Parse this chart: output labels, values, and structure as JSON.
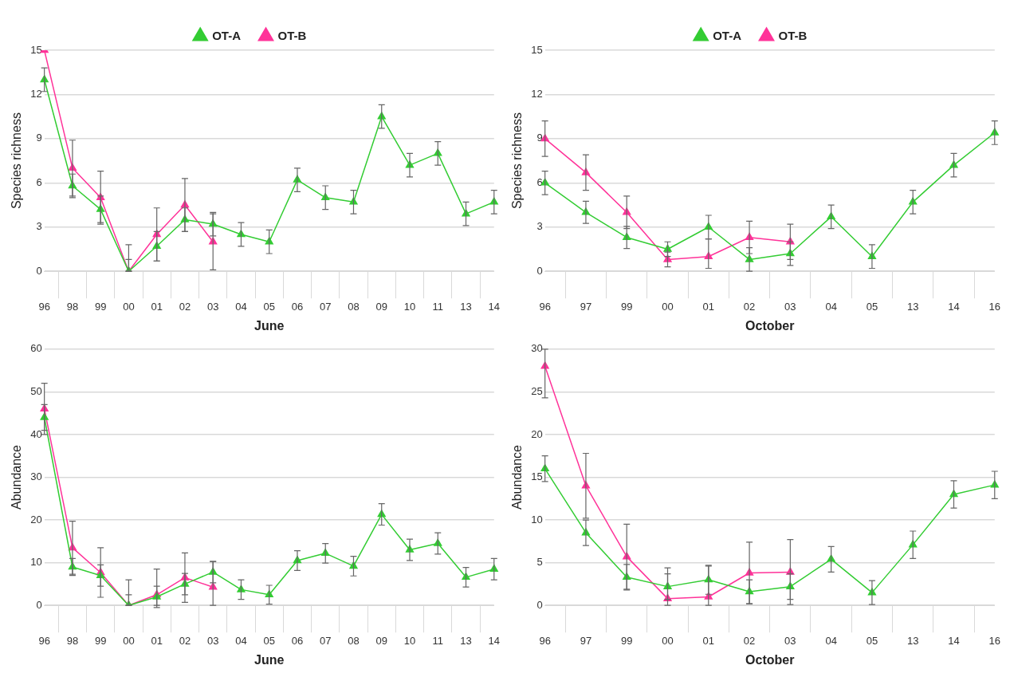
{
  "chart_data": [
    {
      "type": "line",
      "xlabel": "June",
      "ylabel": "Species richness",
      "categories": [
        "96",
        "98",
        "99",
        "00",
        "01",
        "02",
        "03",
        "04",
        "05",
        "06",
        "07",
        "08",
        "09",
        "10",
        "11",
        "13",
        "14"
      ],
      "ylim": [
        0,
        15
      ],
      "yticks": [
        0,
        3,
        6,
        9,
        12,
        15
      ],
      "grid": "y",
      "legend": "top",
      "marker": "triangle",
      "line_style": "solid",
      "series": [
        {
          "name": "OT-A",
          "color": "#33cc33",
          "values": [
            13,
            5.8,
            4.2,
            0,
            1.7,
            3.5,
            3.2,
            2.5,
            2,
            6.2,
            5,
            4.7,
            10.5,
            7.2,
            8,
            3.9,
            4.7
          ],
          "errors": [
            0.8,
            0.8,
            0.9,
            [
              0,
              0.8
            ],
            1,
            0.8,
            0.8,
            0.8,
            0.8,
            0.8,
            0.8,
            0.8,
            0.8,
            0.8,
            0.8,
            0.8,
            0.8
          ]
        },
        {
          "name": "OT-B",
          "color": "#ff3399",
          "values": [
            15,
            7,
            5,
            0,
            2.5,
            4.5,
            2,
            null,
            null,
            null,
            null,
            null,
            null,
            null,
            null,
            null,
            null
          ],
          "errors": [
            null,
            1.9,
            1.8,
            [
              0,
              1.8
            ],
            1.8,
            1.8,
            1.9,
            null,
            null,
            null,
            null,
            null,
            null,
            null,
            null,
            null,
            null
          ]
        }
      ]
    },
    {
      "type": "line",
      "xlabel": "October",
      "ylabel": "Species richness",
      "categories": [
        "96",
        "97",
        "99",
        "00",
        "01",
        "02",
        "03",
        "04",
        "05",
        "13",
        "14",
        "16"
      ],
      "ylim": [
        0,
        15
      ],
      "yticks": [
        0,
        3,
        6,
        9,
        12,
        15
      ],
      "grid": "y",
      "legend": "top",
      "marker": "triangle",
      "line_style": "solid",
      "series": [
        {
          "name": "OT-A",
          "color": "#33cc33",
          "values": [
            6,
            4,
            2.3,
            1.5,
            3,
            0.8,
            1.2,
            3.7,
            1,
            4.7,
            7.2,
            9.4
          ],
          "errors": [
            0.8,
            0.75,
            0.75,
            0.5,
            0.8,
            [
              0,
              1.6
            ],
            0.8,
            0.8,
            0.8,
            0.8,
            0.8,
            0.8
          ]
        },
        {
          "name": "OT-B",
          "color": "#ff3399",
          "values": [
            9,
            6.7,
            4,
            0.8,
            1,
            2.3,
            2,
            null,
            null,
            null,
            null,
            null
          ],
          "errors": [
            1.2,
            1.2,
            1.1,
            0.5,
            [
              0.2,
              2.2
            ],
            1.1,
            1.2,
            null,
            null,
            null,
            null,
            null
          ]
        }
      ]
    },
    {
      "type": "line",
      "xlabel": "June",
      "ylabel": "Abundance",
      "categories": [
        "96",
        "98",
        "99",
        "00",
        "01",
        "02",
        "03",
        "04",
        "05",
        "06",
        "07",
        "08",
        "09",
        "10",
        "11",
        "13",
        "14"
      ],
      "ylim": [
        0,
        60
      ],
      "yticks": [
        0,
        10,
        20,
        30,
        40,
        50,
        60
      ],
      "grid": "y",
      "marker": "triangle",
      "line_style": "solid",
      "series": [
        {
          "color": "#33cc33",
          "values": [
            44,
            9,
            7,
            0,
            2,
            5,
            7.8,
            3.7,
            2.5,
            10.5,
            12.2,
            9.2,
            21.3,
            13,
            14.5,
            6.6,
            8.5
          ],
          "errors": [
            3,
            2,
            2.5,
            [
              0,
              2.5
            ],
            2.5,
            2.5,
            2.5,
            2.3,
            2.2,
            2.3,
            2.3,
            2.3,
            2.5,
            2.5,
            2.5,
            2.3,
            2.5
          ]
        },
        {
          "color": "#ff3399",
          "values": [
            46,
            13.5,
            7.7,
            0,
            2.5,
            6.5,
            4.3,
            null,
            null,
            null,
            null,
            null,
            null,
            null,
            null,
            null,
            null
          ],
          "errors": [
            6,
            6.2,
            5.8,
            [
              0,
              6
            ],
            [
              0,
              8.5
            ],
            5.8,
            [
              0,
              10.3
            ],
            null,
            null,
            null,
            null,
            null,
            null,
            null,
            null,
            null,
            null
          ]
        }
      ]
    },
    {
      "type": "line",
      "xlabel": "October",
      "ylabel": "Abundance",
      "categories": [
        "96",
        "97",
        "99",
        "00",
        "01",
        "02",
        "03",
        "04",
        "05",
        "13",
        "14",
        "16"
      ],
      "ylim": [
        0,
        30
      ],
      "yticks": [
        0,
        5,
        10,
        15,
        20,
        25,
        30
      ],
      "grid": "y",
      "marker": "triangle",
      "line_style": "solid",
      "series": [
        {
          "color": "#33cc33",
          "values": [
            16,
            8.5,
            3.3,
            2.2,
            3,
            1.6,
            2.2,
            5.4,
            1.5,
            7.1,
            13,
            14.1
          ],
          "errors": [
            1.5,
            1.5,
            1.5,
            1.5,
            1.7,
            1.4,
            1.5,
            1.5,
            1.4,
            1.6,
            1.6,
            1.6
          ]
        },
        {
          "color": "#ff3399",
          "values": [
            28,
            14,
            5.7,
            0.8,
            1,
            3.8,
            3.9,
            null,
            null,
            null,
            null,
            null
          ],
          "errors": [
            [
              24.3,
              30
            ],
            3.8,
            3.8,
            [
              0,
              4.4
            ],
            [
              0,
              4.6
            ],
            3.6,
            3.8,
            null,
            null,
            null,
            null,
            null
          ]
        }
      ]
    }
  ]
}
